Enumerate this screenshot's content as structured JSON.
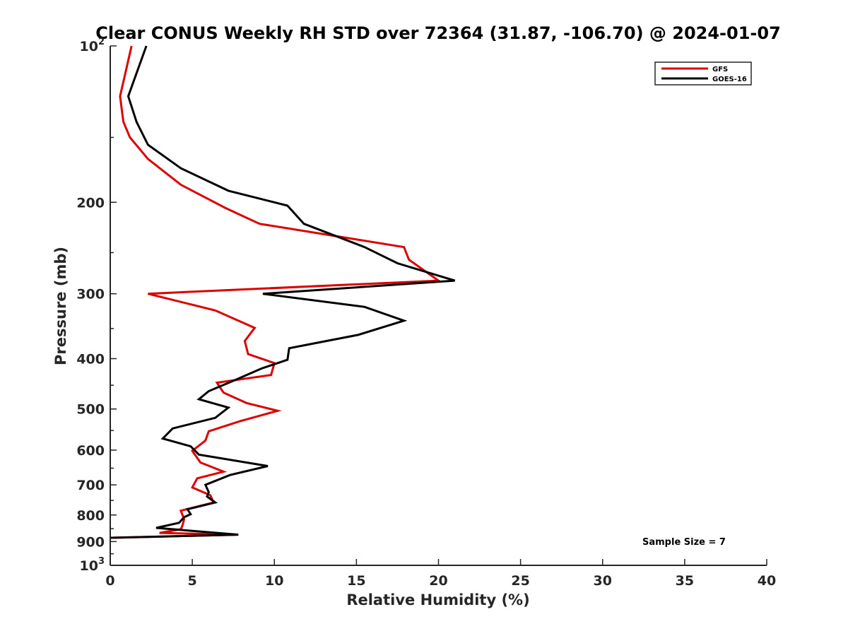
{
  "chart_data": {
    "type": "line",
    "title": "Clear CONUS Weekly RH STD over 72364 (31.87, -106.70) @ 2024-01-07",
    "xlabel": "Relative Humidity (%)",
    "ylabel": "Pressure (mb)",
    "xlim": [
      0,
      40
    ],
    "ylim": [
      100,
      1000
    ],
    "y_scale": "log",
    "y_reversed": true,
    "grid": false,
    "legend_position": "top-right",
    "x_ticks": [
      "0",
      "5",
      "10",
      "15",
      "20",
      "25",
      "30",
      "35",
      "40"
    ],
    "y_ticks": [
      {
        "value": 100,
        "base": "10",
        "exp": "2"
      },
      {
        "value": 200,
        "label": "200"
      },
      {
        "value": 300,
        "label": "300"
      },
      {
        "value": 400,
        "label": "400"
      },
      {
        "value": 500,
        "label": "500"
      },
      {
        "value": 600,
        "label": "600"
      },
      {
        "value": 700,
        "label": "700"
      },
      {
        "value": 800,
        "label": "800"
      },
      {
        "value": 900,
        "label": "900"
      },
      {
        "value": 1000,
        "base": "10",
        "exp": "3"
      }
    ],
    "series": [
      {
        "name": "GFS",
        "color": "#dd0000",
        "points": [
          [
            1.3,
            100
          ],
          [
            0.6,
            125
          ],
          [
            0.8,
            140
          ],
          [
            1.2,
            150
          ],
          [
            2.3,
            165
          ],
          [
            4.3,
            185
          ],
          [
            7.0,
            205
          ],
          [
            9.1,
            220
          ],
          [
            17.9,
            244
          ],
          [
            18.2,
            258
          ],
          [
            20.0,
            283
          ],
          [
            2.3,
            300
          ],
          [
            6.4,
            323
          ],
          [
            8.8,
            349
          ],
          [
            8.2,
            370
          ],
          [
            8.4,
            392
          ],
          [
            10.0,
            408
          ],
          [
            9.8,
            430
          ],
          [
            6.5,
            445
          ],
          [
            6.9,
            465
          ],
          [
            8.3,
            487
          ],
          [
            10.2,
            504
          ],
          [
            7.9,
            528
          ],
          [
            6.0,
            552
          ],
          [
            5.8,
            575
          ],
          [
            5.0,
            602
          ],
          [
            5.5,
            634
          ],
          [
            6.9,
            660
          ],
          [
            5.3,
            680
          ],
          [
            5.0,
            708
          ],
          [
            6.1,
            733
          ],
          [
            6.3,
            757
          ],
          [
            4.3,
            785
          ],
          [
            4.5,
            815
          ],
          [
            4.4,
            838
          ],
          [
            4.3,
            852
          ],
          [
            3.0,
            866
          ],
          [
            7.8,
            873
          ],
          [
            0.2,
            885
          ]
        ]
      },
      {
        "name": "GOES-16",
        "color": "#000000",
        "points": [
          [
            2.2,
            100
          ],
          [
            1.1,
            125
          ],
          [
            1.6,
            140
          ],
          [
            2.3,
            155
          ],
          [
            4.3,
            172
          ],
          [
            7.2,
            190
          ],
          [
            10.8,
            203
          ],
          [
            11.8,
            220
          ],
          [
            15.5,
            244
          ],
          [
            17.5,
            262
          ],
          [
            21.0,
            283
          ],
          [
            9.3,
            300
          ],
          [
            15.5,
            318
          ],
          [
            17.9,
            338
          ],
          [
            15.1,
            360
          ],
          [
            10.9,
            382
          ],
          [
            10.8,
            402
          ],
          [
            9.2,
            418
          ],
          [
            7.6,
            440
          ],
          [
            6.0,
            462
          ],
          [
            5.4,
            479
          ],
          [
            7.2,
            497
          ],
          [
            6.4,
            520
          ],
          [
            3.8,
            545
          ],
          [
            3.2,
            570
          ],
          [
            4.9,
            590
          ],
          [
            5.4,
            612
          ],
          [
            9.6,
            644
          ],
          [
            7.3,
            670
          ],
          [
            5.8,
            700
          ],
          [
            6.0,
            723
          ],
          [
            5.9,
            737
          ],
          [
            6.4,
            757
          ],
          [
            4.7,
            780
          ],
          [
            4.9,
            797
          ],
          [
            4.5,
            808
          ],
          [
            4.2,
            828
          ],
          [
            2.8,
            847
          ],
          [
            7.8,
            873
          ],
          [
            0.0,
            885
          ]
        ]
      }
    ],
    "annotations": [
      "Sample Size = 7"
    ]
  }
}
